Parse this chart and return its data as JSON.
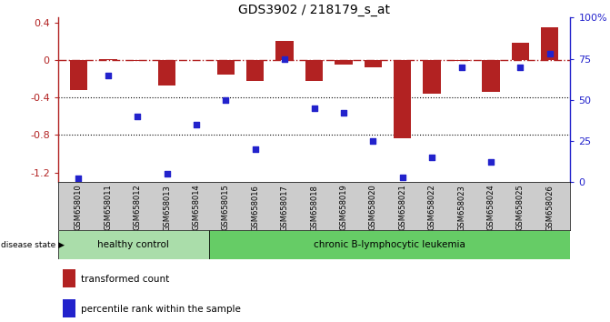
{
  "title": "GDS3902 / 218179_s_at",
  "samples": [
    "GSM658010",
    "GSM658011",
    "GSM658012",
    "GSM658013",
    "GSM658014",
    "GSM658015",
    "GSM658016",
    "GSM658017",
    "GSM658018",
    "GSM658019",
    "GSM658020",
    "GSM658021",
    "GSM658022",
    "GSM658023",
    "GSM658024",
    "GSM658025",
    "GSM658026"
  ],
  "bar_values": [
    -0.32,
    0.01,
    -0.01,
    -0.27,
    0.0,
    -0.16,
    -0.22,
    0.2,
    -0.22,
    -0.05,
    -0.08,
    -0.83,
    -0.36,
    -0.01,
    -0.34,
    0.18,
    0.35
  ],
  "dot_percentiles": [
    2,
    65,
    40,
    5,
    35,
    50,
    20,
    75,
    45,
    42,
    25,
    3,
    15,
    70,
    12,
    70,
    78
  ],
  "bar_color": "#b22222",
  "dot_color": "#2222cc",
  "ylim_left": [
    -1.3,
    0.45
  ],
  "ylim_right": [
    0,
    100
  ],
  "yticks_left": [
    0.4,
    0.0,
    -0.4,
    -0.8,
    -1.2
  ],
  "ytick_labels_left": [
    "0.4",
    "0",
    "-0.4",
    "-0.8",
    "-1.2"
  ],
  "yticks_right": [
    100,
    75,
    50,
    25,
    0
  ],
  "ytick_labels_right": [
    "100%",
    "75",
    "50",
    "25",
    "0"
  ],
  "hlines": [
    -0.4,
    -0.8
  ],
  "healthy_count": 5,
  "healthy_label": "healthy control",
  "disease_label": "chronic B-lymphocytic leukemia",
  "disease_state_label": "disease state",
  "legend_bar_label": "transformed count",
  "legend_dot_label": "percentile rank within the sample",
  "healthy_color": "#aaddaa",
  "disease_color": "#66cc66",
  "tick_bg_color": "#cccccc"
}
